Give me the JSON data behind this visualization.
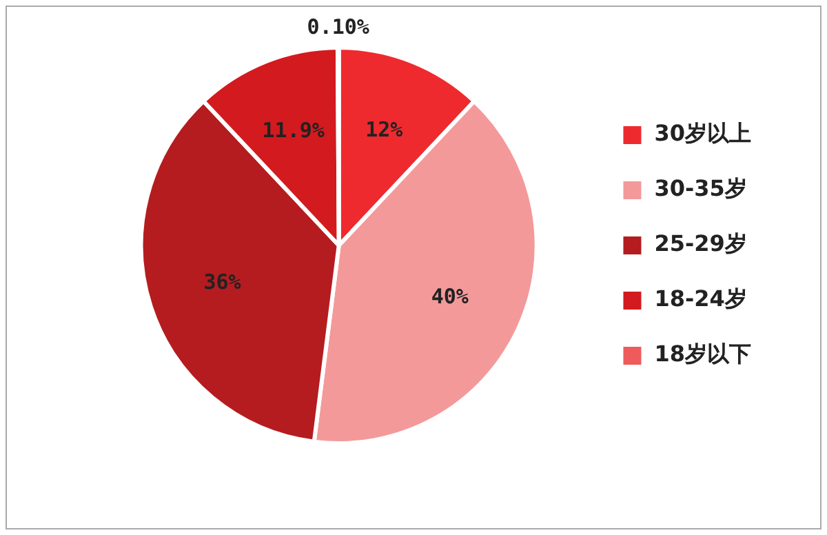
{
  "chart_data": {
    "type": "pie",
    "categories": [
      "30岁以上",
      "30-35岁",
      "25-29岁",
      "18-24岁",
      "18岁以下"
    ],
    "values": [
      12,
      40,
      36,
      11.9,
      0.1
    ],
    "colors": [
      "#ee2a2f",
      "#f4999a",
      "#b51c1f",
      "#d31a1e",
      "#ef5a5a"
    ],
    "value_labels": [
      "12%",
      "40%",
      "36%",
      "11.9%",
      "0.10%"
    ],
    "legend": "right"
  }
}
